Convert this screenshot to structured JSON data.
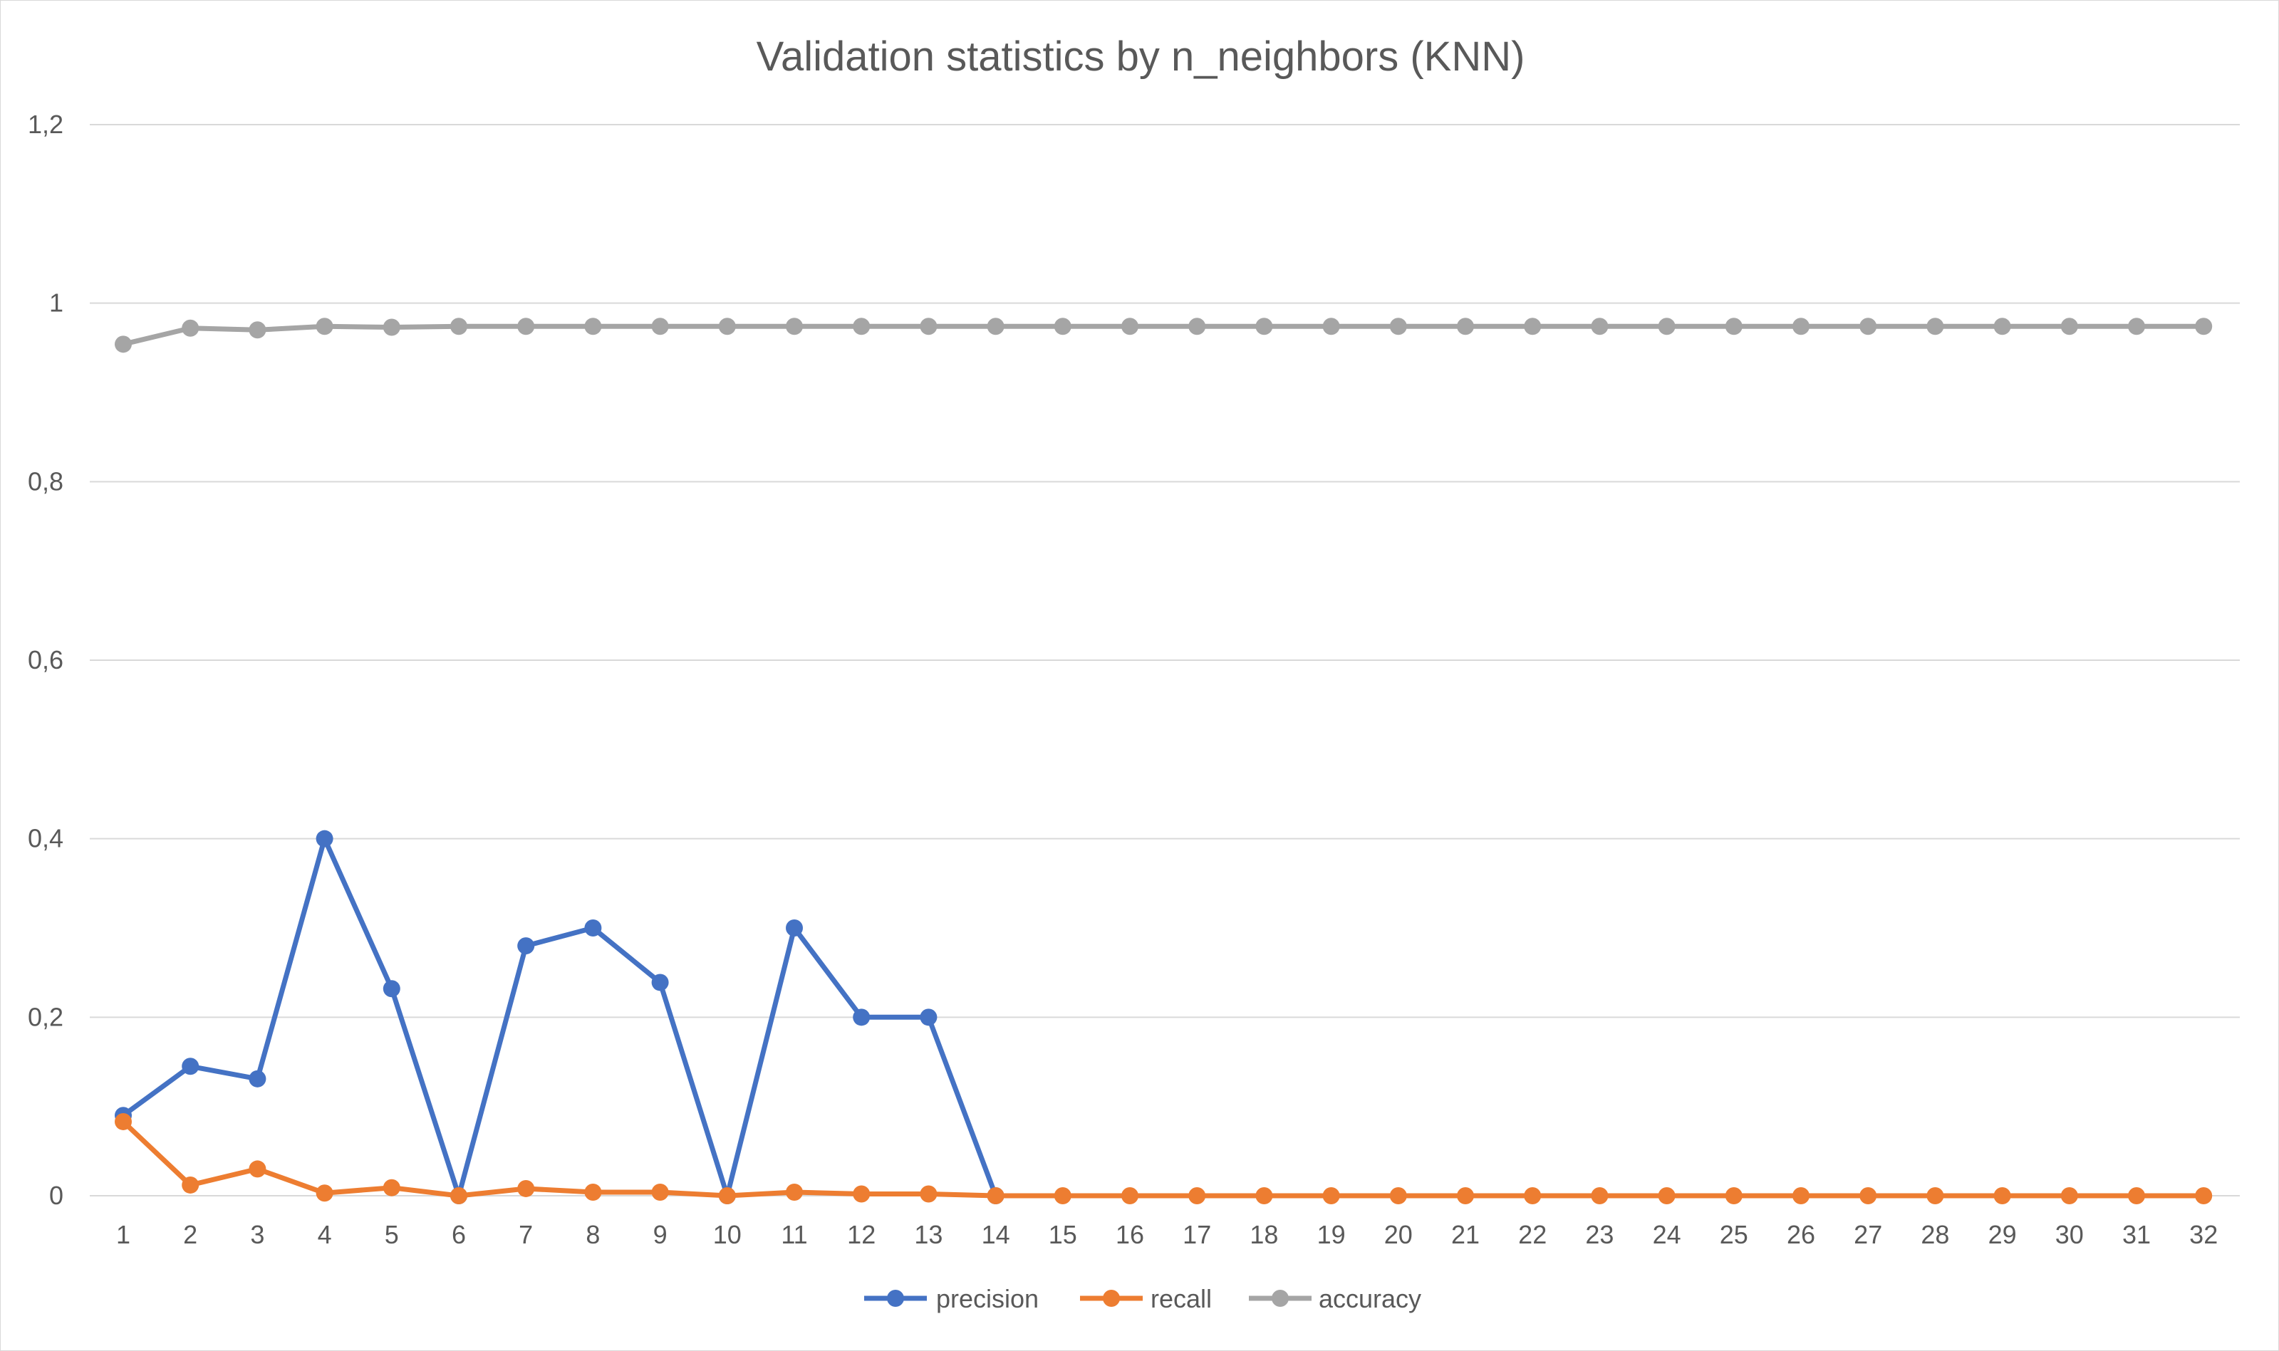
{
  "chart_data": {
    "type": "line",
    "title": "Validation statistics by n_neighbors (KNN)",
    "xlabel": "",
    "ylabel": "",
    "categories": [
      "1",
      "2",
      "3",
      "4",
      "5",
      "6",
      "7",
      "8",
      "9",
      "10",
      "11",
      "12",
      "13",
      "14",
      "15",
      "16",
      "17",
      "18",
      "19",
      "20",
      "21",
      "22",
      "23",
      "24",
      "25",
      "26",
      "27",
      "28",
      "29",
      "30",
      "31",
      "32"
    ],
    "ylim": [
      0,
      1.2
    ],
    "y_ticks": [
      {
        "value": 0,
        "label": "0"
      },
      {
        "value": 0.2,
        "label": "0,2"
      },
      {
        "value": 0.4,
        "label": "0,4"
      },
      {
        "value": 0.6,
        "label": "0,6"
      },
      {
        "value": 0.8,
        "label": "0,8"
      },
      {
        "value": 1,
        "label": "1"
      },
      {
        "value": 1.2,
        "label": "1,2"
      }
    ],
    "grid": true,
    "legend_position": "bottom",
    "series": [
      {
        "name": "precision",
        "color": "#4472c4",
        "values": [
          0.09,
          0.145,
          0.131,
          0.4,
          0.232,
          0,
          0.28,
          0.3,
          0.239,
          0,
          0.3,
          0.2,
          0.2,
          0,
          null,
          null,
          null,
          null,
          null,
          null,
          null,
          null,
          null,
          null,
          null,
          null,
          null,
          null,
          null,
          null,
          null,
          null
        ]
      },
      {
        "name": "recall",
        "color": "#ed7d31",
        "values": [
          0.083,
          0.012,
          0.03,
          0.003,
          0.009,
          0,
          0.008,
          0.004,
          0.004,
          0,
          0.004,
          0.002,
          0.002,
          0,
          0,
          0,
          0,
          0,
          0,
          0,
          0,
          0,
          0,
          0,
          0,
          0,
          0,
          0,
          0,
          0,
          0,
          0
        ]
      },
      {
        "name": "accuracy",
        "color": "#a5a5a5",
        "values": [
          0.954,
          0.972,
          0.97,
          0.974,
          0.973,
          0.974,
          0.974,
          0.974,
          0.974,
          0.974,
          0.974,
          0.974,
          0.974,
          0.974,
          0.974,
          0.974,
          0.974,
          0.974,
          0.974,
          0.974,
          0.974,
          0.974,
          0.974,
          0.974,
          0.974,
          0.974,
          0.974,
          0.974,
          0.974,
          0.974,
          0.974,
          0.974
        ]
      }
    ]
  }
}
